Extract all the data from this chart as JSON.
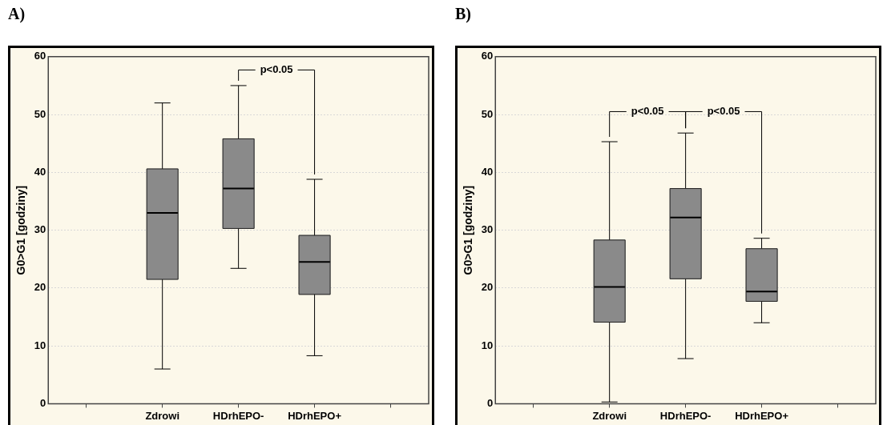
{
  "chart_data": [
    {
      "type": "box",
      "title": "A)",
      "ylabel": "G0>G1 [godziny]",
      "categories": [
        null,
        "Zdrowi",
        "HDrhEPO-",
        "HDrhEPO+",
        null
      ],
      "color": "#8a8a8a",
      "ylim": [
        0,
        60
      ],
      "yticks": [
        0,
        10,
        20,
        30,
        40,
        50,
        60
      ],
      "grid": "y",
      "annotations": [
        "p<0.05"
      ],
      "boxes": [
        null,
        {
          "low": 6,
          "q1": 21.5,
          "median": 33,
          "q3": 40.6,
          "high": 52
        },
        {
          "low": 23.4,
          "q1": 30.3,
          "median": 37.2,
          "q3": 45.8,
          "high": 55
        },
        {
          "low": 8.3,
          "q1": 18.9,
          "median": 24.5,
          "q3": 29.1,
          "high": 38.8
        },
        null
      ]
    },
    {
      "type": "box",
      "title": "B)",
      "ylabel": "G0>G1 [godziny]",
      "categories": [
        null,
        "Zdrowi",
        "HDrhEPO-",
        "HDrhEPO+",
        null
      ],
      "color": "#8a8a8a",
      "ylim": [
        0,
        60
      ],
      "yticks": [
        0,
        10,
        20,
        30,
        40,
        50,
        60
      ],
      "grid": "y",
      "annotations": [
        "p<0.05",
        "p<0.05"
      ],
      "boxes": [
        null,
        {
          "low": 0.3,
          "q1": 14.1,
          "median": 20.2,
          "q3": 28.3,
          "high": 45.3
        },
        {
          "low": 7.8,
          "q1": 21.6,
          "median": 32.2,
          "q3": 37.2,
          "high": 46.8
        },
        {
          "low": 14,
          "q1": 17.7,
          "median": 19.4,
          "q3": 26.8,
          "high": 28.6
        },
        null
      ]
    }
  ]
}
